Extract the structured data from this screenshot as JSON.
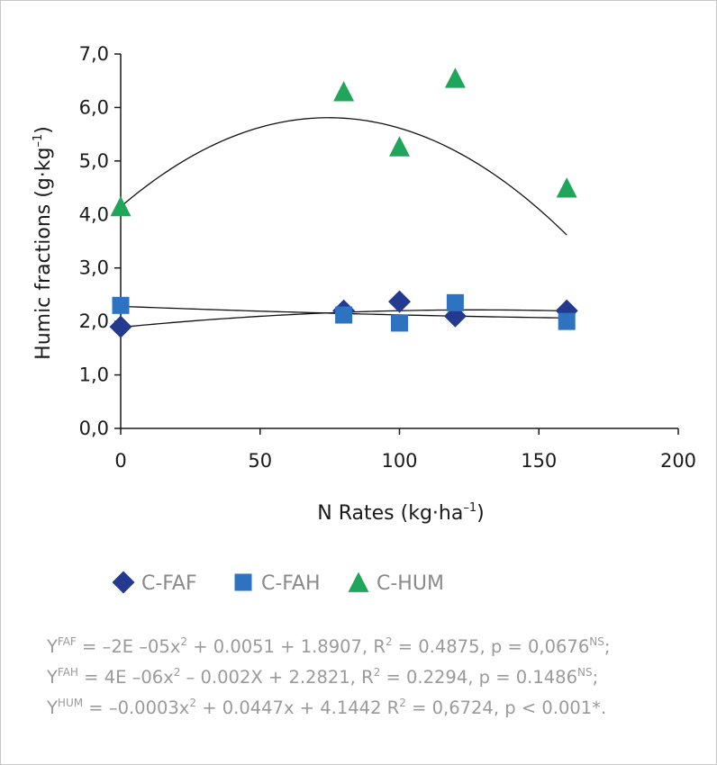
{
  "chart_data": {
    "type": "scatter",
    "title": "",
    "xlabel": "N Rates (kg·ha",
    "xlabel_sup": "–1",
    "xlabel_close": ")",
    "ylabel": "Humic fractions (g·kg",
    "ylabel_sup": "–1",
    "ylabel_close": ")",
    "xlim": [
      0,
      200
    ],
    "ylim": [
      0,
      7
    ],
    "xticks": [
      0,
      50,
      100,
      150,
      200
    ],
    "yticks": [
      0,
      1,
      2,
      3,
      4,
      5,
      6,
      7
    ],
    "xtick_labels": [
      "0",
      "50",
      "100",
      "150",
      "200"
    ],
    "ytick_labels": [
      "0,0",
      "1,0",
      "2,0",
      "3,0",
      "4,0",
      "5,0",
      "6,0",
      "7,0"
    ],
    "legend_position": "bottom-left",
    "series": [
      {
        "name": "C-FAF",
        "marker": "diamond",
        "color": "#233a8f",
        "x": [
          0,
          80,
          100,
          120,
          160
        ],
        "y": [
          1.9,
          2.2,
          2.37,
          2.1,
          2.2
        ],
        "fit": {
          "a": -2e-05,
          "b": 0.0051,
          "c": 1.8907
        }
      },
      {
        "name": "C-FAH",
        "marker": "square",
        "color": "#2e73c2",
        "x": [
          0,
          80,
          100,
          120,
          160
        ],
        "y": [
          2.3,
          2.12,
          1.97,
          2.35,
          2.0
        ],
        "fit": {
          "a": 4e-06,
          "b": -0.002,
          "c": 2.2821
        }
      },
      {
        "name": "C-HUM",
        "marker": "triangle",
        "color": "#1fa65a",
        "x": [
          0,
          80,
          100,
          120,
          160
        ],
        "y": [
          4.15,
          6.3,
          5.27,
          6.55,
          4.5
        ],
        "fit": {
          "a": -0.0003,
          "b": 0.0447,
          "c": 4.1442
        }
      }
    ]
  },
  "equations": [
    {
      "y": "Y",
      "sub": "FAF",
      "body": " = –2E –05x",
      "sq": "2",
      "rest": " + 0.0051 + 1.8907, R",
      "r2": "2",
      "tail": " = 0.4875, p = 0,0676",
      "sig": "NS",
      "end": ";"
    },
    {
      "y": "Y",
      "sub": "FAH",
      "body": " = 4E –06x",
      "sq": "2",
      "rest": " – 0.002X + 2.2821, R",
      "r2": "2",
      "tail": " = 0.2294, p = 0.1486",
      "sig": "NS",
      "end": ";"
    },
    {
      "y": "Y",
      "sub": "HUM",
      "body": " = –0.0003x",
      "sq": "2",
      "rest": " + 0.0447x + 4.1442 R",
      "r2": "2",
      "tail": " = 0,6724, p < 0.001",
      "sig": "",
      "end": "*."
    }
  ]
}
